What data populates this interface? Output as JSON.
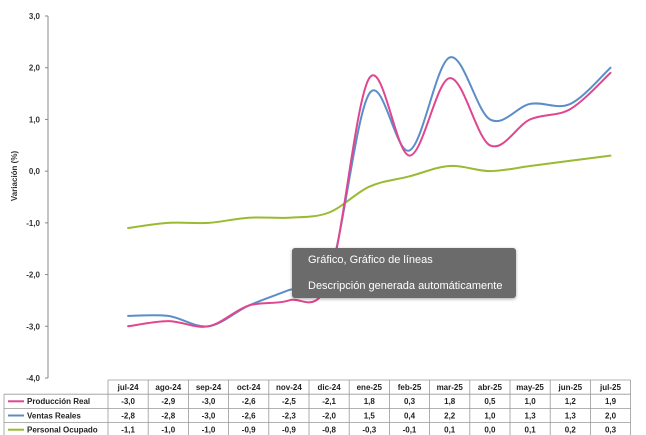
{
  "chart_data": {
    "type": "line",
    "categories": [
      "jul-24",
      "ago-24",
      "sep-24",
      "oct-24",
      "nov-24",
      "dic-24",
      "ene-25",
      "feb-25",
      "mar-25",
      "abr-25",
      "may-25",
      "jun-25",
      "jul-25"
    ],
    "series": [
      {
        "name": "Producción Real",
        "color": "#e0468f",
        "values": [
          -3.0,
          -2.9,
          -3.0,
          -2.6,
          -2.5,
          -2.1,
          1.8,
          0.3,
          1.8,
          0.5,
          1.0,
          1.2,
          1.9
        ],
        "labels": [
          "-3,0",
          "-2,9",
          "-3,0",
          "-2,6",
          "-2,5",
          "-2,1",
          "1,8",
          "0,3",
          "1,8",
          "0,5",
          "1,0",
          "1,2",
          "1,9"
        ]
      },
      {
        "name": "Ventas Reales",
        "color": "#5b8ec9",
        "values": [
          -2.8,
          -2.8,
          -3.0,
          -2.6,
          -2.3,
          -2.0,
          1.5,
          0.4,
          2.2,
          1.0,
          1.3,
          1.3,
          2.0
        ],
        "labels": [
          "-2,8",
          "-2,8",
          "-3,0",
          "-2,6",
          "-2,3",
          "-2,0",
          "1,5",
          "0,4",
          "2,2",
          "1,0",
          "1,3",
          "1,3",
          "2,0"
        ]
      },
      {
        "name": "Personal Ocupado",
        "color": "#9aba32",
        "values": [
          -1.1,
          -1.0,
          -1.0,
          -0.9,
          -0.9,
          -0.8,
          -0.3,
          -0.1,
          0.1,
          0.0,
          0.1,
          0.2,
          0.3
        ],
        "labels": [
          "-1,1",
          "-1,0",
          "-1,0",
          "-0,9",
          "-0,9",
          "-0,8",
          "-0,3",
          "-0,1",
          "0,1",
          "0,0",
          "0,1",
          "0,2",
          "0,3"
        ]
      }
    ],
    "ylabel": "Variación (%)",
    "ylim": [
      -4.0,
      3.0
    ],
    "yticks": [
      {
        "v": 3.0,
        "label": "3,0"
      },
      {
        "v": 2.0,
        "label": "2,0"
      },
      {
        "v": 1.0,
        "label": "1,0"
      },
      {
        "v": 0.0,
        "label": "0,0"
      },
      {
        "v": -1.0,
        "label": "-1,0"
      },
      {
        "v": -2.0,
        "label": "-2,0"
      },
      {
        "v": -3.0,
        "label": "-3,0"
      },
      {
        "v": -4.0,
        "label": "-4,0"
      }
    ],
    "grid": false,
    "data_table": true
  },
  "tooltip": {
    "line1": "Gráfico, Gráfico de líneas",
    "line2": "Descripción generada automáticamente"
  }
}
